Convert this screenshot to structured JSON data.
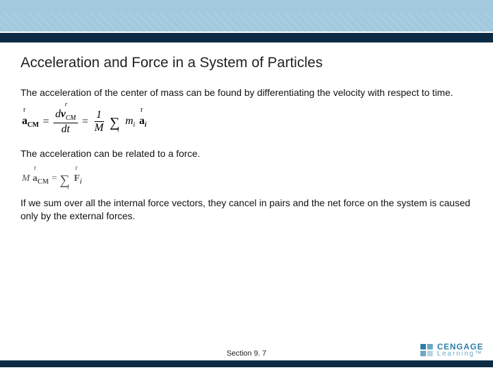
{
  "header": {
    "light_band_color": "#a3c9de",
    "dark_bar_color": "#0d2b45"
  },
  "slide": {
    "title": "Acceleration and Force in a System of Particles",
    "para1": "The acceleration of the center of mass can be found by differentiating the velocity with respect to time.",
    "para2": "The acceleration can be related to a force.",
    "para3": "If we sum over all the internal force vectors, they cancel in pairs and the net force on the system is caused only by the external forces."
  },
  "equations": {
    "eq1": {
      "lhs_symbol": "a",
      "lhs_sub": "CM",
      "frac_num_prefix": "d",
      "frac_num_symbol": "v",
      "frac_num_sub": "CM",
      "frac_den": "dt",
      "one_over_M_num": "1",
      "one_over_M_den": "M",
      "sum_index": "i",
      "term_m": "m",
      "term_m_sub": "i",
      "term_a": "a",
      "term_a_sub": "i"
    },
    "eq2": {
      "M": "M",
      "a": "a",
      "a_sub": "CM",
      "F": "F",
      "F_sub": "i",
      "sum_index": "i"
    }
  },
  "footer": {
    "section_label": "Section  9. 7",
    "logo_brand": "CENGAGE",
    "logo_sub": "Learning™"
  },
  "colors": {
    "title": "#222222",
    "body": "#111111",
    "eq2": "#555555",
    "footer_bar": "#0d2b45",
    "logo_primary": "#2d7ea8",
    "logo_secondary": "#6aa9c4"
  }
}
